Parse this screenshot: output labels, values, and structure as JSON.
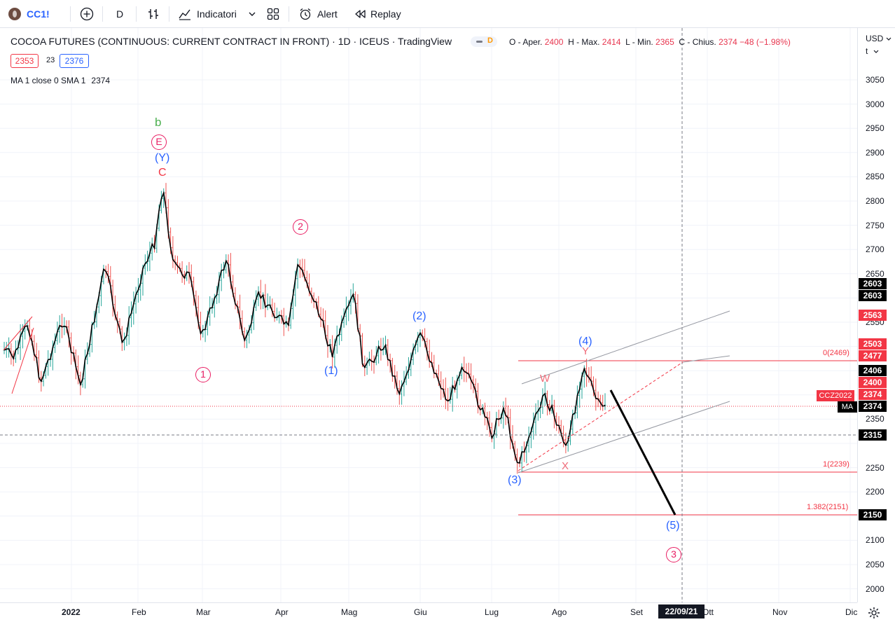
{
  "toolbar": {
    "symbol": "CC1!",
    "interval": "D",
    "indicators_label": "Indicatori",
    "alert_label": "Alert",
    "replay_label": "Replay"
  },
  "legend": {
    "title": "COCOA FUTURES (CONTINUOUS: CURRENT CONTRACT IN FRONT) · 1D · ICEUS · TradingView",
    "status": "D",
    "ohlc": {
      "o_label": "O - Aper.",
      "o": "2400",
      "h_label": "H - Max.",
      "h": "2414",
      "l_label": "L - Min.",
      "l": "2365",
      "c_label": "C - Chius.",
      "c": "2374",
      "change": "−48 (−1.98%)"
    },
    "bid": "2353",
    "spread": "23",
    "ask": "2376",
    "ma_label": "MA 1 close 0 SMA 1",
    "ma_value": "2374"
  },
  "price_axis": {
    "currency": "USD",
    "unit": "t",
    "ticks": [
      "3050",
      "3000",
      "2950",
      "2900",
      "2850",
      "2800",
      "2750",
      "2700",
      "2650",
      "2550",
      "2350",
      "2250",
      "2200",
      "2100",
      "2050",
      "2000"
    ]
  },
  "price_tags": [
    {
      "value": "2603",
      "color": "#000000"
    },
    {
      "value": "2603",
      "color": "#000000"
    },
    {
      "value": "2563",
      "color": "#f23645"
    },
    {
      "value": "2503",
      "color": "#f23645"
    },
    {
      "value": "2477",
      "color": "#f23645"
    },
    {
      "value": "2406",
      "color": "#000000"
    },
    {
      "value": "2400",
      "color": "#f23645"
    },
    {
      "value": "2374",
      "color": "#f23645"
    },
    {
      "value": "2374",
      "color": "#000000"
    },
    {
      "value": "2315",
      "color": "#000000"
    },
    {
      "value": "2150",
      "color": "#000000"
    }
  ],
  "tag_labels": {
    "ccz": "CCZ2022",
    "ma": "MA"
  },
  "time_axis": {
    "labels": [
      "2022",
      "Feb",
      "Mar",
      "Apr",
      "Mag",
      "Giu",
      "Lug",
      "Ago",
      "Set",
      "Ott",
      "Nov",
      "Dic"
    ],
    "crosshair_date": "22/09/21"
  },
  "fib_levels": [
    {
      "label": "0(2469)",
      "value": 2469
    },
    {
      "label": "1(2239)",
      "value": 2239
    },
    {
      "label": "1.382(2151)",
      "value": 2151
    }
  ],
  "wave_labels": {
    "b": "b",
    "E": "E",
    "Y_paren": "(Y)",
    "C": "C",
    "circ1": "1",
    "circ2": "2",
    "circ3": "3",
    "w1": "(1)",
    "w2": "(2)",
    "w3": "(3)",
    "w4": "(4)",
    "w5": "(5)",
    "W": "W",
    "X": "X",
    "Y": "Y"
  },
  "colors": {
    "up": "#26a69a",
    "down": "#ef5350",
    "ma_line": "#000000",
    "red": "#f23645",
    "blue": "#2962ff",
    "green": "#4caf50",
    "pink": "#e91e63"
  },
  "chart_data": {
    "type": "line",
    "series": [
      {
        "name": "MA 1 close 0 SMA 1",
        "x": [
          "2021-12",
          "2022-01",
          "2022-02-10",
          "2022-03",
          "2022-04-10",
          "2022-05-03",
          "2022-06-01",
          "2022-07-14",
          "2022-08-10",
          "2022-08-18"
        ],
        "values": [
          2490,
          2420,
          2840,
          2540,
          2680,
          2440,
          2520,
          2240,
          2406,
          2374
        ]
      }
    ],
    "ylim": [
      1975,
      3090
    ],
    "projection": {
      "from": 2390,
      "to": 2150,
      "target_label": "(5)"
    }
  }
}
